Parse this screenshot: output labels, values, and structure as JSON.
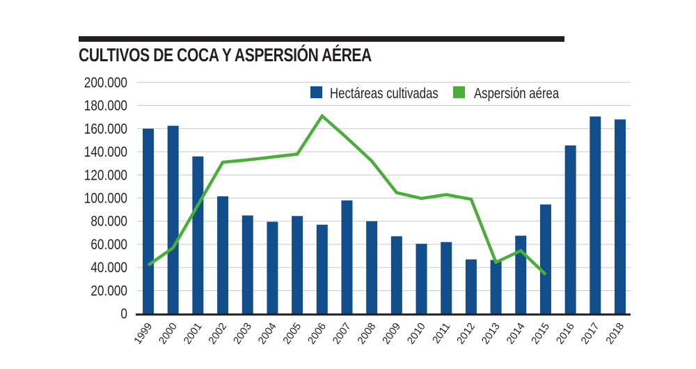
{
  "chart_data": {
    "type": "bar+line",
    "title": "CULTIVOS DE COCA Y ASPERSIÓN AÉREA",
    "categories": [
      "1999",
      "2000",
      "2001",
      "2002",
      "2003",
      "2004",
      "2005",
      "2006",
      "2007",
      "2008",
      "2009",
      "2010",
      "2011",
      "2012",
      "2013",
      "2014",
      "2015",
      "2016",
      "2017",
      "2018"
    ],
    "series": [
      {
        "name": "Hectáreas cultivadas",
        "type": "bar",
        "color": "#124e8c",
        "values": [
          160000,
          162500,
          136000,
          101500,
          85000,
          79500,
          84500,
          77000,
          98000,
          80000,
          67000,
          60500,
          62000,
          47000,
          46500,
          67500,
          94500,
          145500,
          170500,
          168000
        ]
      },
      {
        "name": "Aspersión aérea",
        "type": "line",
        "color": "#4aae3b",
        "values": [
          42000,
          57000,
          94000,
          131000,
          133000,
          135500,
          138000,
          171000,
          152000,
          132000,
          104700,
          99700,
          103000,
          99000,
          44500,
          54500,
          34000,
          null,
          null,
          null
        ]
      }
    ],
    "yticks": [
      "0",
      "20.000",
      "40.000",
      "60.000",
      "80.000",
      "100.000",
      "120.000",
      "140.000",
      "160.000",
      "180.000",
      "200.000"
    ],
    "ylim": [
      0,
      200000
    ],
    "grid": true,
    "legend_position": "top"
  }
}
